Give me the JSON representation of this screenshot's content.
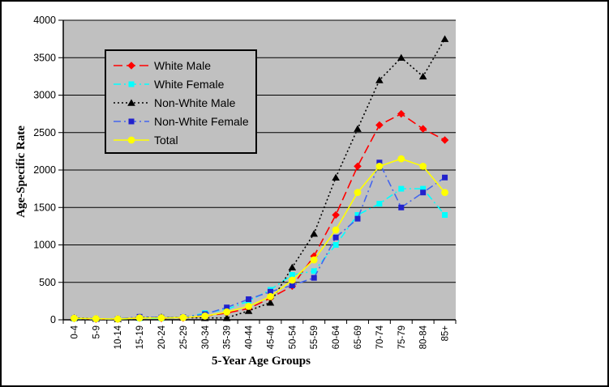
{
  "chart_data": {
    "type": "line",
    "title": "",
    "xlabel": "5-Year Age Groups",
    "ylabel": "Age-Specific Rate",
    "ylim": [
      0,
      4000
    ],
    "yticks": [
      0,
      500,
      1000,
      1500,
      2000,
      2500,
      3000,
      3500,
      4000
    ],
    "grid": true,
    "plot_bg_color": "#c0c0c0",
    "grid_color": "#000000",
    "legend_position": "upper-left-inside",
    "categories": [
      "0-4",
      "5-9",
      "10-14",
      "15-19",
      "20-24",
      "25-29",
      "30-34",
      "35-39",
      "40-44",
      "45-49",
      "50-54",
      "55-59",
      "60-64",
      "65-69",
      "70-74",
      "75-79",
      "80-84",
      "85+"
    ],
    "series": [
      {
        "name": "White Male",
        "color": "#ff0000",
        "marker_color": "#ff0000",
        "line_style": "dashed",
        "marker": "diamond",
        "values": [
          20,
          10,
          10,
          25,
          20,
          25,
          50,
          90,
          150,
          290,
          450,
          850,
          1400,
          2050,
          2600,
          2750,
          2550,
          2400
        ]
      },
      {
        "name": "White Female",
        "color": "#00ffff",
        "marker_color": "#00ffff",
        "line_style": "dash-dot",
        "marker": "square",
        "values": [
          15,
          10,
          10,
          20,
          20,
          30,
          90,
          140,
          250,
          400,
          600,
          650,
          1000,
          1400,
          1550,
          1750,
          1750,
          1400
        ]
      },
      {
        "name": "Non-White Male",
        "color": "#000000",
        "marker_color": "#000000",
        "line_style": "dotted",
        "marker": "triangle",
        "values": [
          25,
          15,
          10,
          30,
          35,
          30,
          25,
          25,
          120,
          230,
          700,
          1150,
          1900,
          2550,
          3200,
          3500,
          3250,
          3750
        ]
      },
      {
        "name": "Non-White Female",
        "color": "#4466ee",
        "marker_color": "#2222cc",
        "line_style": "dash-dot",
        "marker": "square",
        "values": [
          20,
          10,
          10,
          40,
          30,
          35,
          75,
          165,
          275,
          375,
          460,
          560,
          1100,
          1350,
          2100,
          1500,
          1700,
          1900
        ]
      },
      {
        "name": "Total",
        "color": "#ffff00",
        "marker_color": "#ffff00",
        "line_style": "solid",
        "marker": "circle",
        "values": [
          20,
          15,
          10,
          25,
          25,
          30,
          50,
          105,
          180,
          310,
          530,
          800,
          1200,
          1700,
          2050,
          2150,
          2050,
          1700
        ]
      }
    ]
  }
}
